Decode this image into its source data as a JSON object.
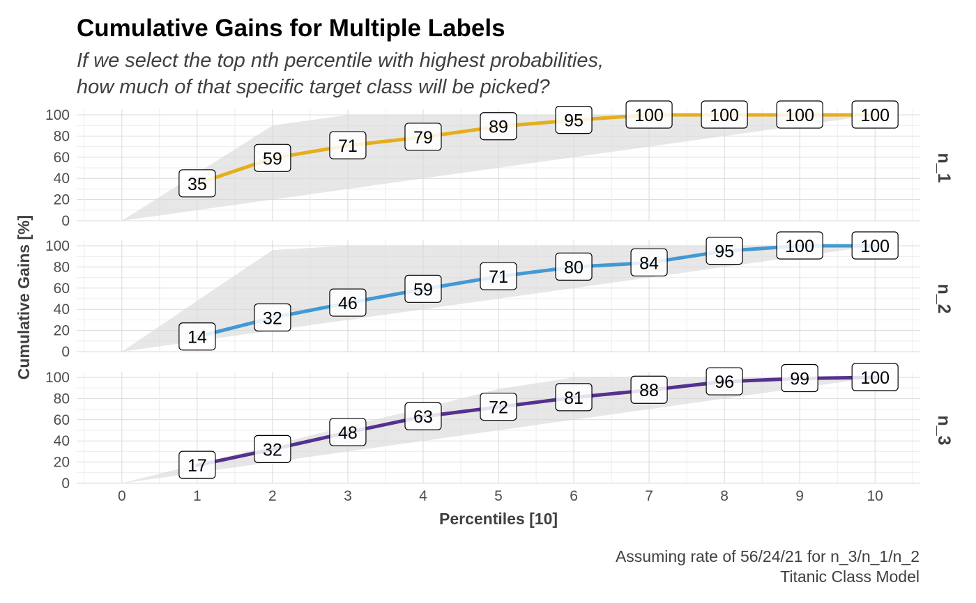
{
  "chart_data": {
    "type": "line",
    "title": "Cumulative Gains for Multiple Labels",
    "subtitle": [
      "If we select the top nth percentile with highest probabilities,",
      "how much of that specific target class will be picked?"
    ],
    "xlabel": "Percentiles [10]",
    "ylabel": "Cumulative Gains [%]",
    "x": [
      0,
      1,
      2,
      3,
      4,
      5,
      6,
      7,
      8,
      9,
      10
    ],
    "x_ticks": [
      "0",
      "1",
      "2",
      "3",
      "4",
      "5",
      "6",
      "7",
      "8",
      "9",
      "10"
    ],
    "y_ticks": [
      "0",
      "20",
      "40",
      "60",
      "80",
      "100"
    ],
    "xlim": [
      -0.6,
      10.6
    ],
    "ylim": [
      0,
      100
    ],
    "grid": true,
    "caption": [
      "Assuming rate of 56/24/21 for n_3/n_1/n_2",
      "Titanic Class Model"
    ],
    "series": [
      {
        "name": "n_1",
        "color": "#E5AE1A",
        "x": [
          0,
          1,
          2,
          3,
          4,
          5,
          6,
          7,
          8,
          9,
          10
        ],
        "values": [
          0,
          35,
          59,
          71,
          79,
          89,
          95,
          100,
          100,
          100,
          100
        ],
        "labels": [
          "35",
          "59",
          "71",
          "79",
          "89",
          "95",
          "100",
          "100",
          "100",
          "100"
        ],
        "band_upper": [
          0,
          45,
          90,
          100,
          100,
          100,
          100,
          100,
          100,
          100,
          100
        ],
        "band_lower": [
          0,
          10,
          20,
          30,
          40,
          50,
          60,
          70,
          80,
          90,
          100
        ]
      },
      {
        "name": "n_2",
        "color": "#4299D4",
        "x": [
          0,
          1,
          2,
          3,
          4,
          5,
          6,
          7,
          8,
          9,
          10
        ],
        "values": [
          0,
          14,
          32,
          46,
          59,
          71,
          80,
          84,
          95,
          100,
          100
        ],
        "labels": [
          "14",
          "32",
          "46",
          "59",
          "71",
          "80",
          "84",
          "95",
          "100",
          "100"
        ],
        "band_upper": [
          0,
          48,
          96,
          100,
          100,
          100,
          100,
          100,
          100,
          100,
          100
        ],
        "band_lower": [
          0,
          10,
          20,
          30,
          40,
          50,
          60,
          70,
          80,
          90,
          100
        ]
      },
      {
        "name": "n_3",
        "color": "#55318F",
        "x": [
          0,
          1,
          2,
          3,
          4,
          5,
          6,
          7,
          8,
          9,
          10
        ],
        "values": [
          0,
          17,
          32,
          48,
          63,
          72,
          81,
          88,
          96,
          99,
          100
        ],
        "labels": [
          "17",
          "32",
          "48",
          "63",
          "72",
          "81",
          "88",
          "96",
          "99",
          "100"
        ],
        "band_upper": [
          0,
          18,
          36,
          54,
          71,
          89,
          100,
          100,
          100,
          100,
          100
        ],
        "band_lower": [
          0,
          10,
          20,
          30,
          40,
          50,
          60,
          70,
          80,
          90,
          100
        ]
      }
    ]
  }
}
